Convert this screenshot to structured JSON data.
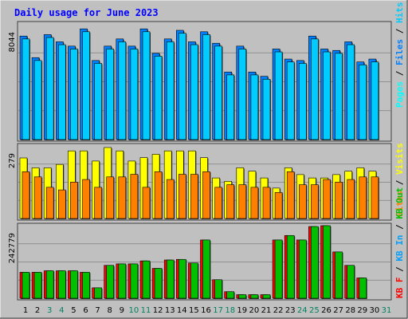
{
  "title": "Daily usage for June 2023",
  "colors": {
    "hits": "#00CCFF",
    "files": "#0080FF",
    "pages": "#00FFFF",
    "sites": "#FF8000",
    "visits": "#FFFF00",
    "kbytes": "#FF0000",
    "kb_in": "#00A0FF",
    "kb_out": "#00C000",
    "title": "#0000FF",
    "background": "#C0C0C0",
    "weekend": "#00805C",
    "weekday": "#000000"
  },
  "chart_data": [
    {
      "type": "bar",
      "panel": "hits-files-pages",
      "ymax_label": "8044",
      "ymax": 8044,
      "side_labels": [
        "Pages",
        "Files",
        "Hits"
      ],
      "categories": [
        "1",
        "2",
        "3",
        "4",
        "5",
        "6",
        "7",
        "8",
        "9",
        "10",
        "11",
        "12",
        "13",
        "14",
        "15",
        "16",
        "17",
        "18",
        "19",
        "20",
        "21",
        "22",
        "23",
        "24",
        "25",
        "26",
        "27",
        "28",
        "29",
        "30",
        "31"
      ],
      "series": [
        {
          "name": "Hits",
          "values": [
            7200,
            5700,
            7300,
            6800,
            6500,
            7700,
            5500,
            6500,
            7000,
            6500,
            7700,
            6000,
            7000,
            7600,
            6800,
            7500,
            6700,
            4700,
            6500,
            4700,
            4400,
            6300,
            5600,
            5500,
            7200,
            6300,
            6200,
            6800,
            5400,
            5600,
            null
          ]
        },
        {
          "name": "Files",
          "values": [
            7000,
            5500,
            7100,
            6600,
            6300,
            7500,
            5300,
            6300,
            6800,
            6300,
            7500,
            5800,
            6800,
            7400,
            6600,
            7300,
            6500,
            4500,
            6300,
            4500,
            4200,
            6100,
            5400,
            5300,
            7000,
            6100,
            6000,
            6600,
            5200,
            5400,
            null
          ]
        }
      ]
    },
    {
      "type": "bar",
      "panel": "visits-sites",
      "ymax_label": "279",
      "ymax": 279,
      "side_labels": [
        "Sites",
        "Visits"
      ],
      "categories": [
        "1",
        "2",
        "3",
        "4",
        "5",
        "6",
        "7",
        "8",
        "9",
        "10",
        "11",
        "12",
        "13",
        "14",
        "15",
        "16",
        "17",
        "18",
        "19",
        "20",
        "21",
        "22",
        "23",
        "24",
        "25",
        "26",
        "27",
        "28",
        "29",
        "30",
        "31"
      ],
      "series": [
        {
          "name": "Visits",
          "values": [
            233,
            195,
            195,
            208,
            260,
            260,
            221,
            273,
            260,
            221,
            234,
            247,
            260,
            260,
            260,
            234,
            156,
            143,
            195,
            182,
            156,
            117,
            195,
            169,
            156,
            156,
            169,
            182,
            195,
            182,
            null
          ]
        },
        {
          "name": "Sites",
          "values": [
            180,
            160,
            120,
            110,
            140,
            150,
            120,
            160,
            160,
            170,
            120,
            180,
            150,
            170,
            170,
            180,
            120,
            130,
            130,
            120,
            120,
            100,
            180,
            130,
            130,
            150,
            140,
            150,
            160,
            160,
            null
          ]
        }
      ]
    },
    {
      "type": "bar",
      "panel": "kbytes",
      "ymax_label": "242779",
      "ymax": 242779,
      "side_labels": [
        "KB F",
        "KB In",
        "KB Out"
      ],
      "categories": [
        "1",
        "2",
        "3",
        "4",
        "5",
        "6",
        "7",
        "8",
        "9",
        "10",
        "11",
        "12",
        "13",
        "14",
        "15",
        "16",
        "17",
        "18",
        "19",
        "20",
        "21",
        "22",
        "23",
        "24",
        "25",
        "26",
        "27",
        "28",
        "29",
        "30",
        "31"
      ],
      "series": [
        {
          "name": "KB F",
          "values": [
            87000,
            87000,
            92000,
            92000,
            92000,
            87000,
            35000,
            110000,
            115000,
            115000,
            125000,
            100000,
            128000,
            130000,
            118000,
            195000,
            62000,
            22000,
            12000,
            12000,
            12000,
            195000,
            210000,
            195000,
            240000,
            242779,
            155000,
            110000,
            68000,
            null,
            null
          ]
        }
      ]
    }
  ]
}
